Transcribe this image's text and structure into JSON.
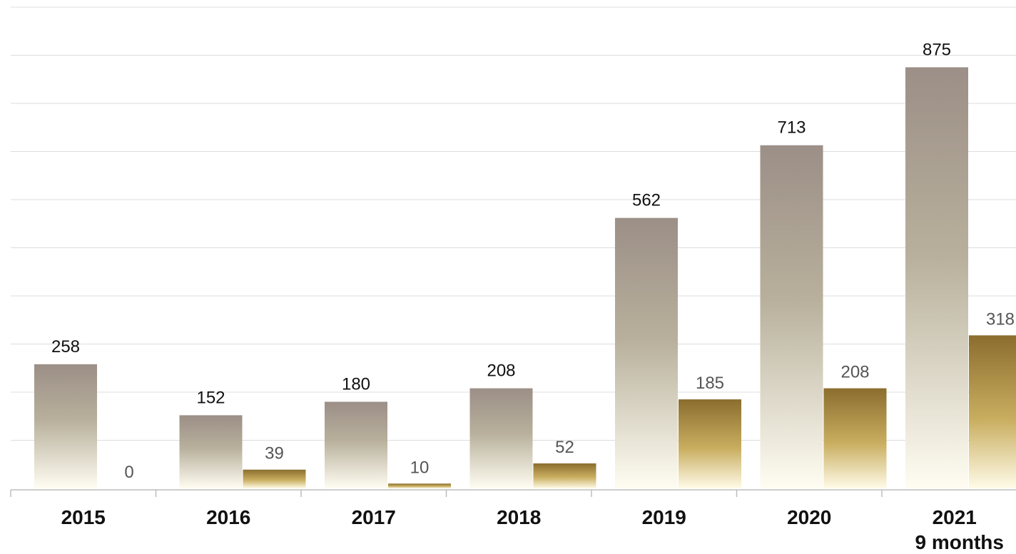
{
  "chart_data": {
    "type": "bar",
    "categories": [
      "2015",
      "2016",
      "2017",
      "2018",
      "2019",
      "2020",
      "2021"
    ],
    "category_sublabels": [
      "",
      "",
      "",
      "",
      "",
      "",
      "9 months"
    ],
    "series": [
      {
        "values": [
          258,
          152,
          180,
          208,
          562,
          713,
          875
        ]
      },
      {
        "values": [
          0,
          39,
          10,
          52,
          185,
          208,
          318
        ]
      }
    ],
    "ylim": [
      0,
      1000
    ],
    "grid": true,
    "title": "",
    "xlabel": "",
    "ylabel": "",
    "colors": {
      "series_1_top": "#9c8f87",
      "series_1_bottom": "#fffdf2",
      "series_2_top": "#8b6d2e",
      "series_2_bottom": "#fffbe8",
      "label_series_1": "#111111",
      "label_series_2": "#555555"
    }
  }
}
